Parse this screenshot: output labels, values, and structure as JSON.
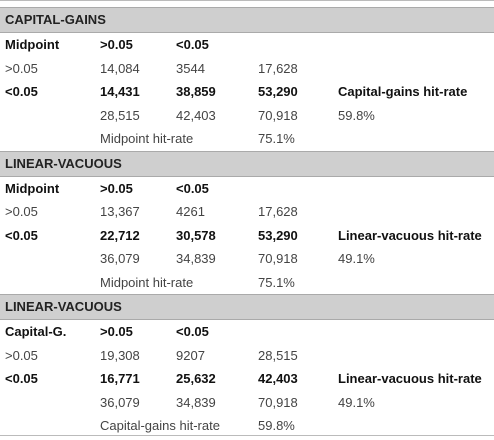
{
  "sections": [
    {
      "title": "CAPITAL-GAINS",
      "rows": [
        [
          "Midpoint",
          ">0.05",
          "<0.05",
          null,
          null
        ],
        [
          ">0.05",
          "14,084",
          "3544",
          "17,628",
          null
        ],
        [
          "<0.05",
          "14,431",
          "38,859",
          "53,290",
          "Capital-gains hit-rate"
        ],
        [
          null,
          "28,515",
          "42,403",
          "70,918",
          "59.8%"
        ],
        [
          null,
          "Midpoint hit-rate",
          null,
          "75.1%",
          null
        ]
      ]
    },
    {
      "title": "LINEAR-VACUOUS",
      "rows": [
        [
          "Midpoint",
          ">0.05",
          "<0.05",
          null,
          null
        ],
        [
          ">0.05",
          "13,367",
          "4261",
          "17,628",
          null
        ],
        [
          "<0.05",
          "22,712",
          "30,578",
          "53,290",
          "Linear-vacuous hit-rate"
        ],
        [
          null,
          "36,079",
          "34,839",
          "70,918",
          "49.1%"
        ],
        [
          null,
          "Midpoint hit-rate",
          null,
          "75.1%",
          null
        ]
      ]
    },
    {
      "title": "LINEAR-VACUOUS",
      "rows": [
        [
          "Capital-G.",
          ">0.05",
          "<0.05",
          null,
          null
        ],
        [
          ">0.05",
          "19,308",
          "9207",
          "28,515",
          null
        ],
        [
          "<0.05",
          "16,771",
          "25,632",
          "42,403",
          "Linear-vacuous hit-rate"
        ],
        [
          null,
          "36,079",
          "34,839",
          "70,918",
          "49.1%"
        ],
        [
          null,
          "Capital-gains hit-rate",
          null,
          "59.8%",
          null
        ]
      ]
    }
  ]
}
